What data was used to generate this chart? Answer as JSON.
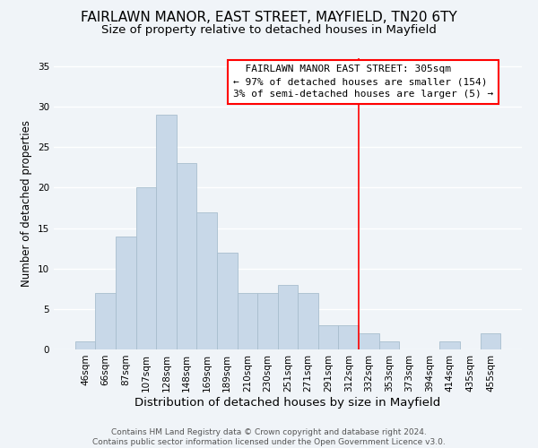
{
  "title": "FAIRLAWN MANOR, EAST STREET, MAYFIELD, TN20 6TY",
  "subtitle": "Size of property relative to detached houses in Mayfield",
  "xlabel": "Distribution of detached houses by size in Mayfield",
  "ylabel": "Number of detached properties",
  "bar_labels": [
    "46sqm",
    "66sqm",
    "87sqm",
    "107sqm",
    "128sqm",
    "148sqm",
    "169sqm",
    "189sqm",
    "210sqm",
    "230sqm",
    "251sqm",
    "271sqm",
    "291sqm",
    "312sqm",
    "332sqm",
    "353sqm",
    "373sqm",
    "394sqm",
    "414sqm",
    "435sqm",
    "455sqm"
  ],
  "bar_values": [
    1,
    7,
    14,
    20,
    29,
    23,
    17,
    12,
    7,
    7,
    8,
    7,
    3,
    3,
    2,
    1,
    0,
    0,
    1,
    0,
    2
  ],
  "bar_color": "#c8d8e8",
  "bar_edge_color": "#a8bece",
  "vline_x": 13.5,
  "vline_color": "red",
  "annotation_lines": [
    "  FAIRLAWN MANOR EAST STREET: 305sqm",
    "← 97% of detached houses are smaller (154)",
    "3% of semi-detached houses are larger (5) →"
  ],
  "ylim": [
    0,
    36
  ],
  "yticks": [
    0,
    5,
    10,
    15,
    20,
    25,
    30,
    35
  ],
  "footer_line1": "Contains HM Land Registry data © Crown copyright and database right 2024.",
  "footer_line2": "Contains public sector information licensed under the Open Government Licence v3.0.",
  "title_fontsize": 11,
  "subtitle_fontsize": 9.5,
  "xlabel_fontsize": 9.5,
  "ylabel_fontsize": 8.5,
  "tick_fontsize": 7.5,
  "annotation_fontsize": 8,
  "footer_fontsize": 6.5,
  "background_color": "#f0f4f8",
  "grid_color": "#ffffff"
}
